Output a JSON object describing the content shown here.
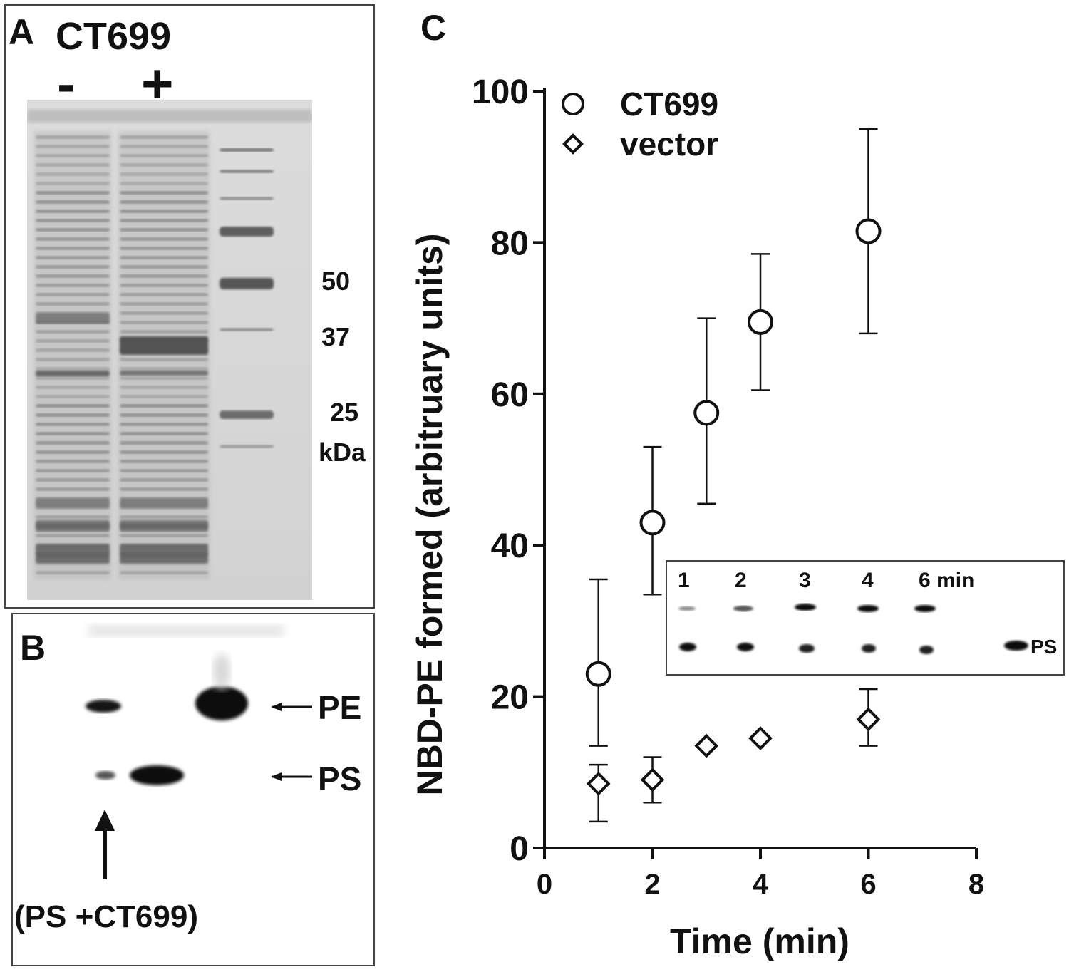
{
  "panel_a": {
    "letter": "A",
    "construct": "CT699",
    "lane_minus": "-",
    "lane_plus": "+",
    "markers": [
      "50",
      "37",
      "25"
    ],
    "unit": "kDa"
  },
  "panel_b": {
    "letter": "B",
    "band_pe": "PE",
    "band_ps": "PS",
    "lane_label": "(PS +CT699)"
  },
  "panel_c": {
    "letter": "C",
    "inset": {
      "times": [
        "1",
        "2",
        "3",
        "4",
        "6 min"
      ],
      "ps_label": "PS"
    }
  },
  "chart_data": {
    "type": "scatter",
    "xlabel": "Time (min)",
    "ylabel": "NBD-PE formed (arbitruary units)",
    "xlim": [
      0,
      8
    ],
    "ylim": [
      0,
      100
    ],
    "xticks": [
      "0",
      "2",
      "4",
      "6",
      "8"
    ],
    "yticks": [
      "0",
      "20",
      "40",
      "60",
      "80",
      "100"
    ],
    "grid": false,
    "legend": "top-left",
    "series": [
      {
        "name": "CT699",
        "marker": "circle",
        "x": [
          1,
          2,
          3,
          4,
          6
        ],
        "y": [
          23,
          43,
          57.5,
          69.5,
          81.5
        ],
        "err_low": [
          13.5,
          33.5,
          45.5,
          60.5,
          68
        ],
        "err_high": [
          35.5,
          53,
          70,
          78.5,
          95
        ]
      },
      {
        "name": "vector",
        "marker": "diamond",
        "x": [
          1,
          2,
          3,
          4,
          6
        ],
        "y": [
          8.5,
          9,
          13.5,
          14.5,
          17
        ],
        "err_low": [
          3.5,
          6,
          null,
          null,
          13.5
        ],
        "err_high": [
          11,
          12,
          null,
          null,
          21
        ]
      }
    ]
  }
}
